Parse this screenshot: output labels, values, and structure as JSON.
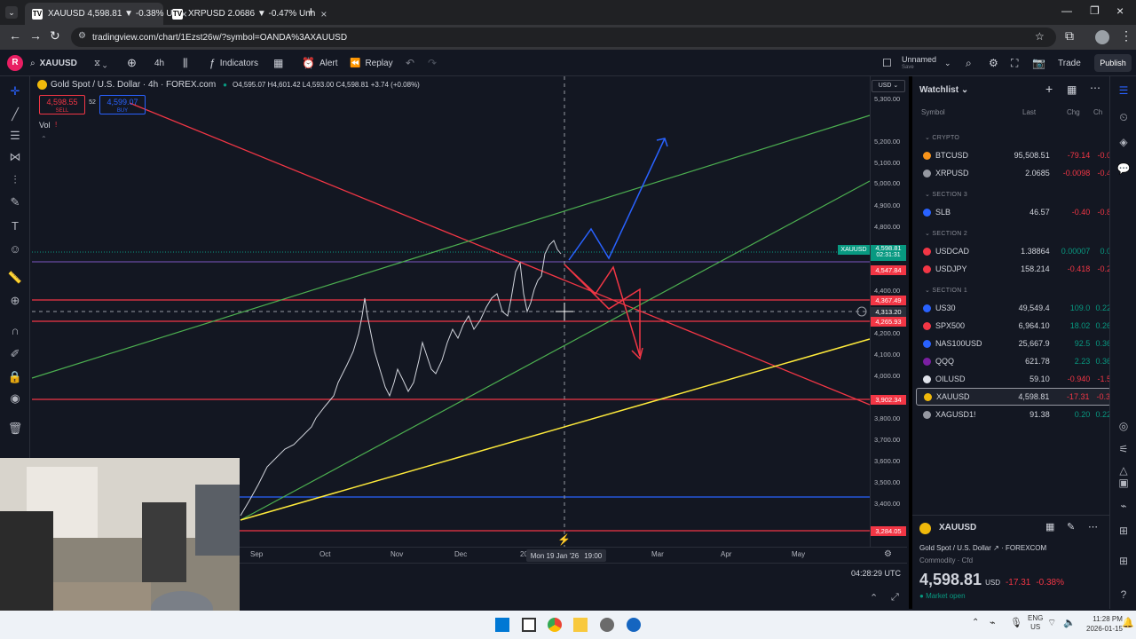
{
  "browser": {
    "tabs": [
      {
        "title": "XAUUSD 4,598.81 ▼ -0.38% Ur",
        "active": true
      },
      {
        "title": "XRPUSD 2.0686 ▼ -0.47% Unn",
        "active": false
      }
    ],
    "url": "tradingview.com/chart/1Ezst26w/?symbol=OANDA%3AXAUUSD"
  },
  "toolbar": {
    "avatar": "R",
    "symbol": "XAUUSD",
    "interval": "4h",
    "indicators": "Indicators",
    "alert": "Alert",
    "replay": "Replay",
    "layout_name": "Unnamed",
    "layout_sub": "Save",
    "trade": "Trade",
    "publish": "Publish"
  },
  "chart": {
    "title": "Gold Spot / U.S. Dollar · 4h · FOREX.com",
    "ohlc": "O4,595.07 H4,601.42 L4,593.00 C4,598.81 +3.74 (+0.08%)",
    "sell_price": "4,598.55",
    "sell_label": "SELL",
    "spread": "52",
    "buy_price": "4,599.07",
    "buy_label": "BUY",
    "volume_label": "Vol",
    "currency": "USD",
    "crosshair_date": "Mon 19 Jan '26",
    "crosshair_time": "19:00",
    "clock": "04:28:29 UTC",
    "price_ticks": [
      "5,300.00",
      "5,200.00",
      "5,100.00",
      "5,000.00",
      "4,900.00",
      "4,800.00",
      "4,700.00",
      "4,400.00",
      "4,200.00",
      "4,100.00",
      "4,000.00",
      "3,900.00",
      "3,800.00",
      "3,700.00",
      "3,600.00",
      "3,500.00",
      "3,400.00"
    ],
    "price_tags": [
      {
        "text": "4,598.81",
        "sub": "02:31:31",
        "color": "#089981"
      },
      {
        "text": "4,547.84",
        "color": "#f23645"
      },
      {
        "text": "4,367.49",
        "color": "#f23645"
      },
      {
        "text": "4,313.20",
        "color": "#2a2e39"
      },
      {
        "text": "4,265.93",
        "color": "#f23645"
      },
      {
        "text": "3,902.34",
        "color": "#f23645"
      },
      {
        "text": "3,284.05",
        "color": "#f23645"
      }
    ],
    "symbol_tag": "XAUUSD",
    "time_ticks": [
      "Sep",
      "Oct",
      "Nov",
      "Dec",
      "20",
      "Mar",
      "Apr",
      "May"
    ]
  },
  "watchlist": {
    "title": "Watchlist",
    "col_symbol": "Symbol",
    "col_last": "Last",
    "col_chg": "Chg",
    "col_pct": "Ch",
    "sections": [
      {
        "name": "CRYPTO",
        "rows": [
          {
            "symbol": "BTCUSD",
            "last": "95,508.51",
            "chg": "-79.14",
            "pct": "-0.0",
            "icon": "#f7931a",
            "dir": "red"
          },
          {
            "symbol": "XRPUSD",
            "last": "2.0685",
            "chg": "-0.0098",
            "pct": "-0.4",
            "icon": "#9598a1",
            "dir": "red"
          }
        ]
      },
      {
        "name": "SECTION 3",
        "rows": [
          {
            "symbol": "SLB",
            "last": "46.57",
            "chg": "-0.40",
            "pct": "-0.8",
            "icon": "#2962ff",
            "dir": "red"
          }
        ]
      },
      {
        "name": "SECTION 2",
        "rows": [
          {
            "symbol": "USDCAD",
            "last": "1.38864",
            "chg": "0.00007",
            "pct": "0.0",
            "icon": "#f23645",
            "dir": "green"
          },
          {
            "symbol": "USDJPY",
            "last": "158.214",
            "chg": "-0.418",
            "pct": "-0.2",
            "icon": "#f23645",
            "dir": "red"
          }
        ]
      },
      {
        "name": "SECTION 1",
        "rows": [
          {
            "symbol": "US30",
            "last": "49,549.4",
            "chg": "109.0",
            "pct": "0.22",
            "icon": "#2962ff",
            "dir": "green"
          },
          {
            "symbol": "SPX500",
            "last": "6,964.10",
            "chg": "18.02",
            "pct": "0.26",
            "icon": "#f23645",
            "dir": "green"
          },
          {
            "symbol": "NAS100USD",
            "last": "25,667.9",
            "chg": "92.5",
            "pct": "0.36",
            "icon": "#2962ff",
            "dir": "green"
          },
          {
            "symbol": "QQQ",
            "last": "621.78",
            "chg": "2.23",
            "pct": "0.36",
            "icon": "#7b1fa2",
            "dir": "green"
          },
          {
            "symbol": "OILUSD",
            "last": "59.10",
            "chg": "-0.940",
            "pct": "-1.5",
            "icon": "#e0e3eb",
            "dir": "red"
          },
          {
            "symbol": "XAUUSD",
            "last": "4,598.81",
            "chg": "-17.31",
            "pct": "-0.3",
            "icon": "#f0b90b",
            "dir": "red",
            "selected": true
          },
          {
            "symbol": "XAGUSD1!",
            "last": "91.38",
            "chg": "0.20",
            "pct": "0.22",
            "icon": "#9598a1",
            "dir": "green"
          }
        ]
      }
    ],
    "detail": {
      "symbol": "XAUUSD",
      "name": "Gold Spot / U.S. Dollar",
      "exchange": "FOREXCOM",
      "category": "Commodity · Cfd",
      "price": "4,598.81",
      "currency": "USD",
      "change": "-17.31",
      "change_pct": "-0.38%",
      "status": "Market open"
    }
  },
  "taskbar": {
    "lang": "ENG",
    "region": "US",
    "time": "11:28 PM",
    "date": "2026-01-15"
  }
}
